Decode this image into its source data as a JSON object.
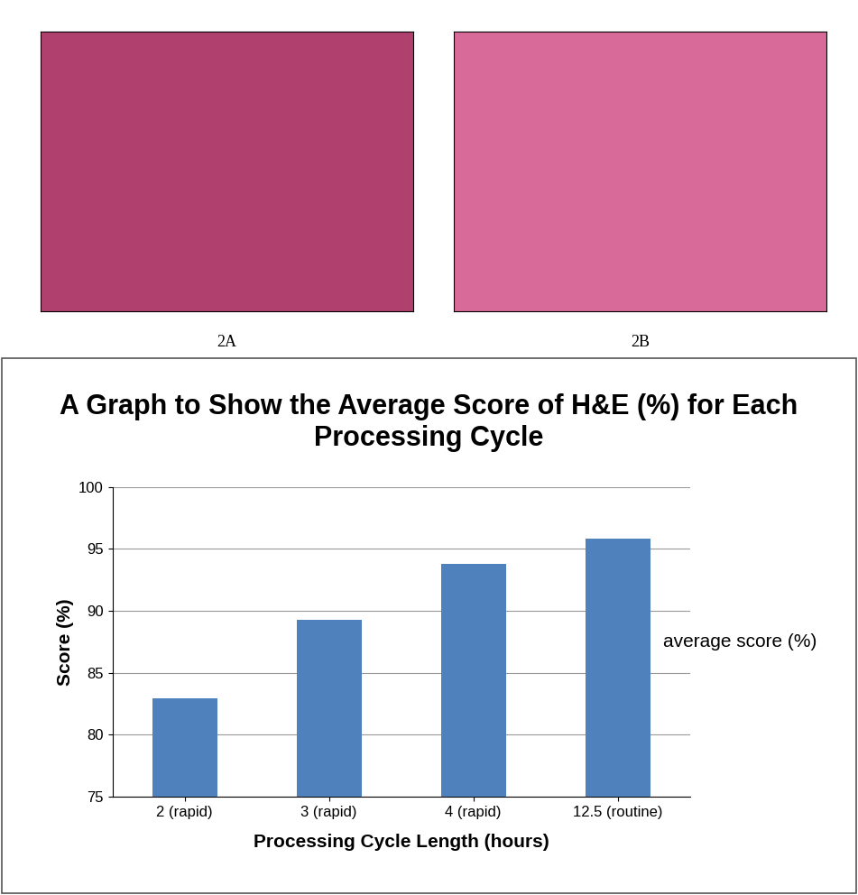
{
  "images": [
    {
      "label": "2A"
    },
    {
      "label": "2B"
    }
  ],
  "chart_data": {
    "type": "bar",
    "title": "A Graph to Show the Average Score of H&E (%) for Each Processing Cycle",
    "x_label": "Processing Cycle Length (hours)",
    "y_label": "Score (%)",
    "categories": [
      "2 (rapid)",
      "3 (rapid)",
      "4 (rapid)",
      "12.5 (routine)"
    ],
    "series": [
      {
        "name": "average score (%)",
        "color": "#4f81bd",
        "values": [
          82.9,
          89.3,
          93.8,
          95.8
        ]
      }
    ],
    "ylim": [
      75,
      100
    ],
    "yticks": [
      75,
      80,
      85,
      90,
      95,
      100
    ],
    "grid": true,
    "legend": "center right"
  }
}
